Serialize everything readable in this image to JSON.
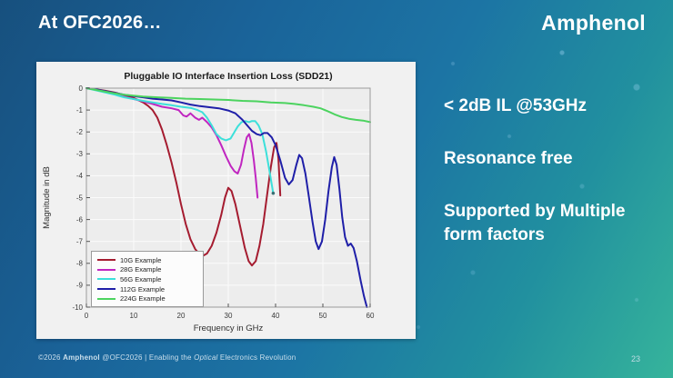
{
  "slide": {
    "title": "At OFC2026…",
    "brand": "Amphenol",
    "bullets": [
      "< 2dB IL @53GHz",
      "Resonance free",
      "Supported by Multiple form factors"
    ],
    "footer": {
      "copyright": "©2026",
      "brand": "Amphenol",
      "middle": "@OFC2026 | Enabling the",
      "italic": "Optical",
      "rest": "Electronics Revolution"
    },
    "page_number": "23"
  },
  "chart_data": {
    "type": "line",
    "title": "Pluggable IO Interface Insertion Loss (SDD21)",
    "xlabel": "Frequency in GHz",
    "ylabel": "Magnitude in dB",
    "xlim": [
      0,
      60
    ],
    "ylim": [
      -10,
      0
    ],
    "xticks": [
      0,
      10,
      20,
      30,
      40,
      50,
      60
    ],
    "yticks": [
      0,
      -1,
      -2,
      -3,
      -4,
      -5,
      -6,
      -7,
      -8,
      -9,
      -10
    ],
    "grid": true,
    "legend_position": "bottom-left",
    "plot_bg": "#EDEDED",
    "grid_color": "#FBFBFB",
    "box_color": "#9A9A9A",
    "series": [
      {
        "name": "10G Example",
        "color": "#A51C30",
        "points": [
          [
            0,
            0
          ],
          [
            2,
            -0.05
          ],
          [
            4,
            -0.12
          ],
          [
            6,
            -0.2
          ],
          [
            8,
            -0.32
          ],
          [
            10,
            -0.45
          ],
          [
            12,
            -0.65
          ],
          [
            13,
            -0.8
          ],
          [
            14,
            -1.0
          ],
          [
            15,
            -1.35
          ],
          [
            16,
            -1.9
          ],
          [
            17,
            -2.6
          ],
          [
            18,
            -3.4
          ],
          [
            19,
            -4.3
          ],
          [
            20,
            -5.3
          ],
          [
            21,
            -6.2
          ],
          [
            22,
            -6.9
          ],
          [
            23,
            -7.35
          ],
          [
            24,
            -7.6
          ],
          [
            24.7,
            -7.65
          ],
          [
            25.5,
            -7.55
          ],
          [
            26.5,
            -7.2
          ],
          [
            27.5,
            -6.6
          ],
          [
            28.5,
            -5.8
          ],
          [
            29.3,
            -5.0
          ],
          [
            30,
            -4.55
          ],
          [
            30.7,
            -4.7
          ],
          [
            31.5,
            -5.3
          ],
          [
            32.5,
            -6.3
          ],
          [
            33.5,
            -7.3
          ],
          [
            34.3,
            -7.9
          ],
          [
            35,
            -8.1
          ],
          [
            35.8,
            -7.9
          ],
          [
            36.6,
            -7.2
          ],
          [
            37.4,
            -6.2
          ],
          [
            38.2,
            -4.9
          ],
          [
            39,
            -3.6
          ],
          [
            39.7,
            -2.7
          ],
          [
            40.2,
            -2.5
          ],
          [
            40.6,
            -3.2
          ],
          [
            41,
            -4.9
          ]
        ]
      },
      {
        "name": "28G Example",
        "color": "#C026C0",
        "points": [
          [
            0,
            0
          ],
          [
            2,
            -0.08
          ],
          [
            4,
            -0.18
          ],
          [
            6,
            -0.28
          ],
          [
            8,
            -0.4
          ],
          [
            10,
            -0.5
          ],
          [
            12,
            -0.6
          ],
          [
            14,
            -0.72
          ],
          [
            16,
            -0.85
          ],
          [
            18,
            -0.92
          ],
          [
            19.5,
            -1.0
          ],
          [
            20.5,
            -1.25
          ],
          [
            21.2,
            -1.3
          ],
          [
            22,
            -1.15
          ],
          [
            23,
            -1.35
          ],
          [
            23.8,
            -1.45
          ],
          [
            24.5,
            -1.35
          ],
          [
            25.5,
            -1.55
          ],
          [
            26.5,
            -1.8
          ],
          [
            27.5,
            -2.15
          ],
          [
            28.5,
            -2.6
          ],
          [
            29.5,
            -3.1
          ],
          [
            30.5,
            -3.55
          ],
          [
            31.3,
            -3.8
          ],
          [
            32,
            -3.9
          ],
          [
            32.7,
            -3.5
          ],
          [
            33.3,
            -2.8
          ],
          [
            33.9,
            -2.25
          ],
          [
            34.4,
            -2.1
          ],
          [
            34.9,
            -2.5
          ],
          [
            35.4,
            -3.3
          ],
          [
            35.8,
            -4.1
          ],
          [
            36.2,
            -5.0
          ]
        ]
      },
      {
        "name": "56G Example",
        "color": "#3CE0DA",
        "end_dot": "#3A6F74",
        "points": [
          [
            0,
            0
          ],
          [
            2,
            -0.1
          ],
          [
            4,
            -0.2
          ],
          [
            6,
            -0.3
          ],
          [
            8,
            -0.42
          ],
          [
            10,
            -0.5
          ],
          [
            12,
            -0.58
          ],
          [
            14,
            -0.65
          ],
          [
            16,
            -0.72
          ],
          [
            18,
            -0.78
          ],
          [
            20,
            -0.85
          ],
          [
            22,
            -0.9
          ],
          [
            23.5,
            -1.0
          ],
          [
            24.5,
            -1.1
          ],
          [
            25.5,
            -1.35
          ],
          [
            26.5,
            -1.7
          ],
          [
            27.5,
            -2.1
          ],
          [
            28.5,
            -2.3
          ],
          [
            29.5,
            -2.38
          ],
          [
            30.5,
            -2.3
          ],
          [
            31.3,
            -2.0
          ],
          [
            32,
            -1.75
          ],
          [
            32.8,
            -1.55
          ],
          [
            33.6,
            -1.5
          ],
          [
            34.4,
            -1.55
          ],
          [
            35,
            -1.5
          ],
          [
            35.7,
            -1.5
          ],
          [
            36.4,
            -1.7
          ],
          [
            37.2,
            -2.1
          ],
          [
            38,
            -2.9
          ],
          [
            38.8,
            -3.9
          ],
          [
            39.5,
            -4.8
          ]
        ]
      },
      {
        "name": "112G Example",
        "color": "#1F1FA8",
        "points": [
          [
            0,
            0
          ],
          [
            2,
            -0.06
          ],
          [
            4,
            -0.14
          ],
          [
            6,
            -0.22
          ],
          [
            8,
            -0.3
          ],
          [
            10,
            -0.36
          ],
          [
            12,
            -0.42
          ],
          [
            14,
            -0.48
          ],
          [
            16,
            -0.52
          ],
          [
            18,
            -0.56
          ],
          [
            20,
            -0.65
          ],
          [
            22,
            -0.75
          ],
          [
            24,
            -0.82
          ],
          [
            26,
            -0.87
          ],
          [
            28,
            -0.92
          ],
          [
            30,
            -1.02
          ],
          [
            31.5,
            -1.15
          ],
          [
            33,
            -1.45
          ],
          [
            34,
            -1.7
          ],
          [
            35,
            -1.95
          ],
          [
            36,
            -2.1
          ],
          [
            36.8,
            -2.15
          ],
          [
            37.5,
            -2.05
          ],
          [
            38.3,
            -2.05
          ],
          [
            39.2,
            -2.25
          ],
          [
            40,
            -2.6
          ],
          [
            41,
            -3.3
          ],
          [
            42,
            -4.1
          ],
          [
            42.8,
            -4.4
          ],
          [
            43.6,
            -4.2
          ],
          [
            44.4,
            -3.5
          ],
          [
            45,
            -3.05
          ],
          [
            45.6,
            -3.2
          ],
          [
            46.3,
            -3.9
          ],
          [
            47,
            -4.9
          ],
          [
            47.8,
            -6.1
          ],
          [
            48.5,
            -7.0
          ],
          [
            49.1,
            -7.35
          ],
          [
            49.8,
            -7.0
          ],
          [
            50.5,
            -6.0
          ],
          [
            51.2,
            -4.7
          ],
          [
            51.9,
            -3.6
          ],
          [
            52.4,
            -3.15
          ],
          [
            52.9,
            -3.5
          ],
          [
            53.5,
            -4.6
          ],
          [
            54.1,
            -5.9
          ],
          [
            54.7,
            -6.8
          ],
          [
            55.3,
            -7.2
          ],
          [
            55.9,
            -7.1
          ],
          [
            56.5,
            -7.3
          ],
          [
            57.2,
            -7.9
          ],
          [
            58,
            -8.8
          ],
          [
            58.7,
            -9.5
          ],
          [
            59.3,
            -10
          ]
        ]
      },
      {
        "name": "224G Example",
        "color": "#4CD35F",
        "points": [
          [
            0,
            0
          ],
          [
            2,
            -0.08
          ],
          [
            4,
            -0.16
          ],
          [
            6,
            -0.24
          ],
          [
            8,
            -0.3
          ],
          [
            10,
            -0.34
          ],
          [
            12,
            -0.38
          ],
          [
            15,
            -0.42
          ],
          [
            18,
            -0.45
          ],
          [
            21,
            -0.48
          ],
          [
            24,
            -0.5
          ],
          [
            27,
            -0.52
          ],
          [
            30,
            -0.54
          ],
          [
            33,
            -0.58
          ],
          [
            36,
            -0.6
          ],
          [
            39,
            -0.65
          ],
          [
            42,
            -0.68
          ],
          [
            44,
            -0.72
          ],
          [
            46,
            -0.78
          ],
          [
            48,
            -0.85
          ],
          [
            49.5,
            -0.92
          ],
          [
            51,
            -1.05
          ],
          [
            52.5,
            -1.2
          ],
          [
            54,
            -1.32
          ],
          [
            55.5,
            -1.4
          ],
          [
            57,
            -1.45
          ],
          [
            58.5,
            -1.48
          ],
          [
            60,
            -1.55
          ]
        ]
      }
    ]
  }
}
